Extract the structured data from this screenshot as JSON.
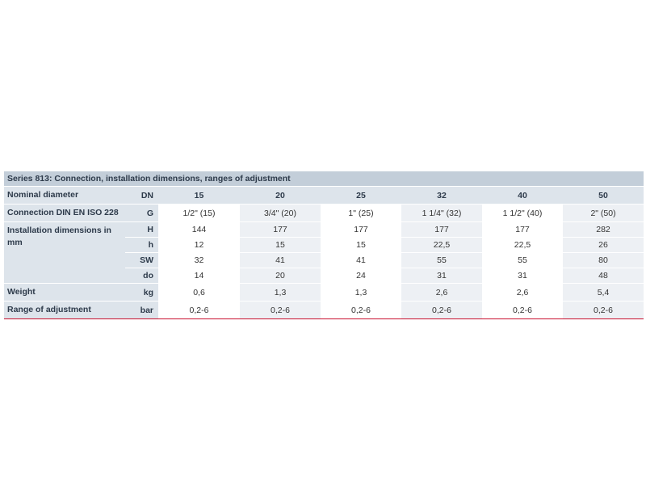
{
  "title": "Series 813: Connection, installation dimensions, ranges of adjustment",
  "header": {
    "label": "Nominal diameter",
    "unit": "DN",
    "values": [
      "15",
      "20",
      "25",
      "32",
      "40",
      "50"
    ]
  },
  "sections": [
    {
      "label": "Connection DIN EN ISO 228",
      "rows": [
        {
          "unit": "G",
          "values": [
            "1/2\" (15)",
            "3/4\" (20)",
            "1\" (25)",
            "1 1/4\" (32)",
            "1 1/2\" (40)",
            "2\" (50)"
          ]
        }
      ]
    },
    {
      "label": "Installation dimensions in mm",
      "rows": [
        {
          "unit": "H",
          "values": [
            "144",
            "177",
            "177",
            "177",
            "177",
            "282"
          ]
        },
        {
          "unit": "h",
          "values": [
            "12",
            "15",
            "15",
            "22,5",
            "22,5",
            "26"
          ]
        },
        {
          "unit": "SW",
          "values": [
            "32",
            "41",
            "41",
            "55",
            "55",
            "80"
          ]
        },
        {
          "unit": "do",
          "values": [
            "14",
            "20",
            "24",
            "31",
            "31",
            "48"
          ]
        }
      ]
    },
    {
      "label": "Weight",
      "rows": [
        {
          "unit": "kg",
          "values": [
            "0,6",
            "1,3",
            "1,3",
            "2,6",
            "2,6",
            "5,4"
          ]
        }
      ]
    },
    {
      "label": "Range of adjustment",
      "rows": [
        {
          "unit": "bar",
          "values": [
            "0,2-6",
            "0,2-6",
            "0,2-6",
            "0,2-6",
            "0,2-6",
            "0,2-6"
          ]
        }
      ]
    }
  ]
}
